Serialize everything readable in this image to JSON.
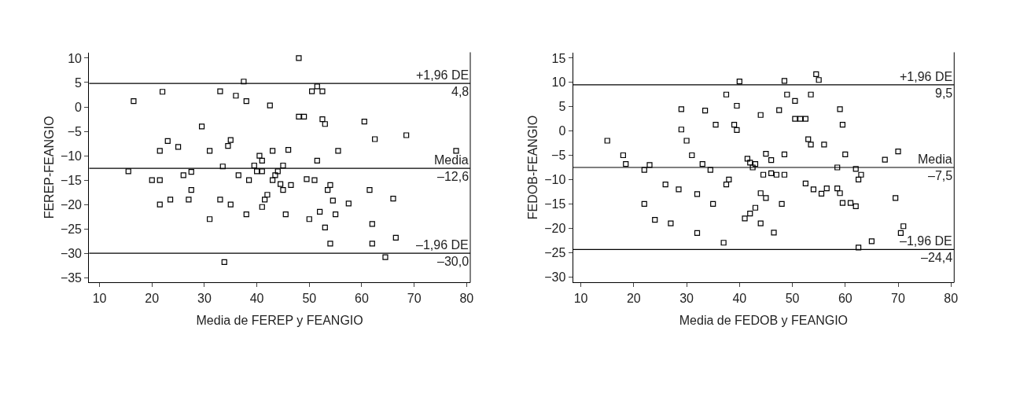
{
  "chart_data": [
    {
      "type": "scatter",
      "xlabel": "Media de FEREP y FEANGIO",
      "ylabel": "FEREP-FEANGIO",
      "marker": "square",
      "xlim": [
        8,
        80.7
      ],
      "ylim": [
        -36,
        11.2
      ],
      "xticks": [
        10,
        20,
        30,
        40,
        50,
        60,
        70,
        80
      ],
      "yticks": [
        -35,
        -30,
        -25,
        -20,
        -15,
        -10,
        -5,
        0,
        5,
        10
      ],
      "series": [
        {
          "color": "#000000",
          "x": [
            15.5,
            16.5,
            20,
            21.5,
            21.5,
            21.5,
            22,
            23,
            23.5,
            25,
            26,
            27,
            27.5,
            27.5,
            29.5,
            31,
            31,
            33,
            33,
            33.5,
            34.5,
            35,
            35,
            36,
            36.5,
            37.5,
            38,
            38,
            38.5,
            39.5,
            40,
            40.5,
            41,
            41,
            41,
            41.5,
            42,
            42.5,
            43,
            43,
            43.5,
            44,
            44.5,
            45,
            45,
            45.5,
            46,
            46.5,
            48,
            48,
            49,
            49.5,
            50,
            50.5,
            51,
            51.5,
            51.5,
            52,
            52.5,
            52.5,
            53,
            53,
            53.5,
            54,
            54,
            54.5,
            55,
            55.5,
            57.5,
            60.5,
            61.5,
            62,
            62,
            62.5,
            64.5,
            66,
            66.5,
            68.5,
            78,
            33.8
          ],
          "values": [
            -13.2,
            1.2,
            -15,
            -9,
            -20,
            -15,
            3.1,
            -7,
            -19,
            -8.2,
            -14,
            -19,
            -13.3,
            -17,
            -4,
            -9,
            -23,
            -19,
            3.2,
            -12.2,
            -8,
            -20,
            -6.8,
            2.3,
            -14,
            5.2,
            -22,
            1.2,
            -15,
            -12,
            -13.2,
            -10,
            -11,
            -13.2,
            -20.5,
            -19,
            -18,
            0.3,
            -15,
            -9,
            -14,
            -13.2,
            -15.8,
            -12,
            -17,
            -22,
            -8.8,
            -16,
            10,
            -2,
            -2,
            -14.8,
            -23,
            3.2,
            -15,
            -11,
            4.2,
            -21.5,
            -2.5,
            3.2,
            -24.7,
            -3.5,
            -17,
            -16,
            -28,
            -19.2,
            -22,
            -9,
            -19.8,
            -3,
            -17,
            -28,
            -24,
            -6.6,
            -30.8,
            -18.8,
            -26.8,
            -5.8,
            -9,
            -31.8
          ]
        }
      ],
      "ref_lines": [
        {
          "axis": "y",
          "value": 4.8,
          "label": "+1,96 DE",
          "color": "#000000"
        },
        {
          "axis": "y",
          "value": -12.6,
          "label": "Media",
          "color": "#000000"
        },
        {
          "axis": "y",
          "value": -30.0,
          "label": "–1,96 DE",
          "color": "#000000"
        }
      ],
      "annotations": [
        {
          "text": "4,8",
          "y": 4.8
        },
        {
          "text": "–12,6",
          "y": -12.6
        },
        {
          "text": "–30,0",
          "y": -30.0
        }
      ]
    },
    {
      "type": "scatter",
      "xlabel": "Media de FEDOB y FEANGIO",
      "ylabel": "FEDOB-FEANGIO",
      "marker": "square",
      "xlim": [
        8.5,
        80.6
      ],
      "ylim": [
        -31.2,
        16.2
      ],
      "xticks": [
        10,
        20,
        30,
        40,
        50,
        60,
        70,
        80
      ],
      "yticks": [
        -30,
        -25,
        -20,
        -15,
        -10,
        -5,
        0,
        5,
        10,
        15
      ],
      "series": [
        {
          "color": "#000000",
          "x": [
            15,
            18,
            18.5,
            22,
            22,
            23,
            24,
            26,
            27,
            28.5,
            29,
            29,
            30,
            31,
            32,
            32,
            33,
            33.5,
            34.5,
            35,
            35.5,
            37,
            37.5,
            37.5,
            38,
            39,
            39.5,
            39.5,
            40,
            41,
            41.5,
            42,
            42,
            42.5,
            43,
            43,
            44,
            44,
            44,
            44.5,
            45,
            45,
            46,
            46,
            46.5,
            47,
            47.5,
            48,
            48.5,
            48.5,
            48.5,
            49,
            50.5,
            50.5,
            51.5,
            52.5,
            52.5,
            53,
            53.5,
            53.5,
            54,
            54.5,
            55,
            55.5,
            56,
            56.5,
            58.5,
            58.5,
            59,
            59,
            59.5,
            59.5,
            60,
            61,
            62,
            62,
            62.5,
            62.5,
            63,
            65,
            67.5,
            69.5,
            70,
            70.5,
            71
          ],
          "values": [
            -2,
            -5,
            -6.8,
            -15,
            -8,
            -7,
            -18.3,
            -11,
            -19,
            -12,
            4.5,
            0.3,
            -2,
            -5,
            -21,
            -13,
            -6.8,
            4.2,
            -8,
            -15,
            1.3,
            -23,
            7.5,
            -11,
            -10,
            1.3,
            0.2,
            5.2,
            10.2,
            -18,
            -5.7,
            -17,
            -6.5,
            -7.5,
            -15.8,
            -6.8,
            -12.8,
            -19,
            3.3,
            -9,
            -4.7,
            -13.8,
            -6,
            -8.7,
            -20.9,
            -9,
            4.3,
            -15,
            -4.8,
            -9,
            10.3,
            7.5,
            2.5,
            6.2,
            2.5,
            2.5,
            -10.8,
            -1.7,
            -2.8,
            7.5,
            -12,
            11.7,
            10.5,
            -12.9,
            -2.8,
            -11.8,
            -7.5,
            -11.8,
            4.5,
            -12.8,
            -14.8,
            1.3,
            -4.8,
            -14.8,
            -7.8,
            -15.5,
            -10,
            -24,
            -9,
            -22.7,
            -5.9,
            -13.8,
            -4.2,
            -21,
            -19.6
          ]
        }
      ],
      "ref_lines": [
        {
          "axis": "y",
          "value": 9.5,
          "label": "+1,96 DE",
          "color": "#000000"
        },
        {
          "axis": "y",
          "value": -7.5,
          "label": "Media",
          "color": "#000000"
        },
        {
          "axis": "y",
          "value": -24.4,
          "label": "–1,96 DE",
          "color": "#000000"
        }
      ],
      "annotations": [
        {
          "text": "9,5",
          "y": 9.5
        },
        {
          "text": "–7,5",
          "y": -7.5
        },
        {
          "text": "–24,4",
          "y": -24.4
        }
      ]
    }
  ]
}
